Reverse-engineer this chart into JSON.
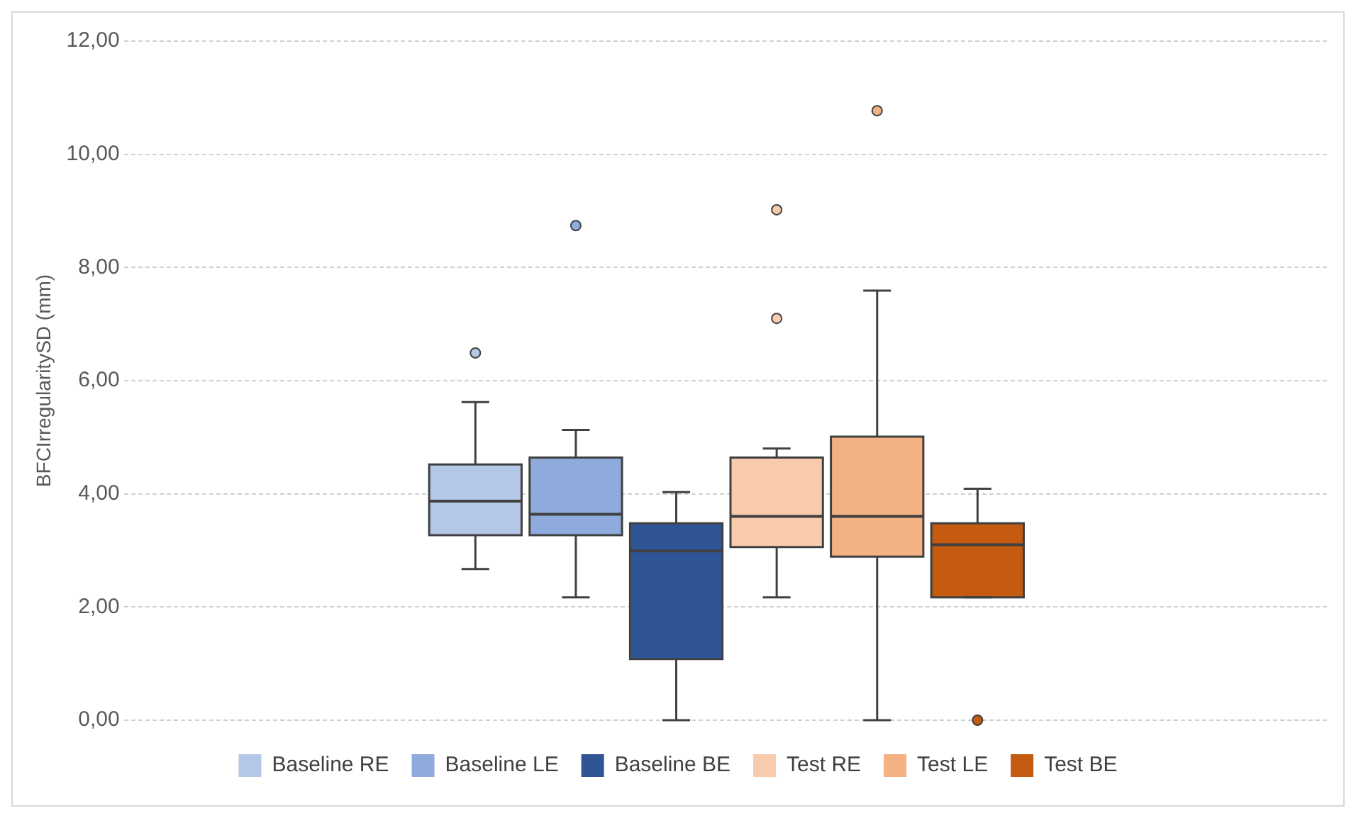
{
  "chart_data": {
    "type": "box",
    "ylabel": "BFCIrregularitySD (mm)",
    "categories": [
      null
    ],
    "series": [
      {
        "name": "Baseline RE",
        "color": "#b4c7e7",
        "boxes": [
          {
            "low": 2.67,
            "q1": 3.27,
            "median": 3.87,
            "q3": 4.52,
            "high": 5.62,
            "outliers": [
              6.49
            ]
          }
        ]
      },
      {
        "name": "Baseline LE",
        "color": "#8faadc",
        "boxes": [
          {
            "low": 2.17,
            "q1": 3.27,
            "median": 3.64,
            "q3": 4.64,
            "high": 5.13,
            "outliers": [
              8.74
            ]
          }
        ]
      },
      {
        "name": "Baseline BE",
        "color": "#2f5597",
        "boxes": [
          {
            "low": 0,
            "q1": 1.08,
            "median": 2.99,
            "q3": 3.48,
            "high": 4.03
          }
        ]
      },
      {
        "name": "Test RE",
        "color": "#f8cbad",
        "boxes": [
          {
            "low": 2.17,
            "q1": 3.06,
            "median": 3.6,
            "q3": 4.64,
            "high": 4.8,
            "outliers": [
              9.02,
              7.1
            ]
          }
        ]
      },
      {
        "name": "Test LE",
        "color": "#f4b183",
        "boxes": [
          {
            "low": 0,
            "q1": 2.89,
            "median": 3.6,
            "q3": 5.01,
            "high": 7.59,
            "outliers": [
              10.77
            ]
          }
        ]
      },
      {
        "name": "Test BE",
        "color": "#c55a11",
        "boxes": [
          {
            "low": 2.17,
            "q1": 2.17,
            "median": 3.1,
            "q3": 3.48,
            "high": 4.09,
            "outliers": [
              0
            ]
          }
        ]
      }
    ],
    "ylim": [
      0,
      12
    ],
    "yticks": [
      {
        "value": 0,
        "label": "0,00"
      },
      {
        "value": 2,
        "label": "2,00"
      },
      {
        "value": 4,
        "label": "4,00"
      },
      {
        "value": 6,
        "label": "6,00"
      },
      {
        "value": 8,
        "label": "8,00"
      },
      {
        "value": 10,
        "label": "10,00"
      },
      {
        "value": 12,
        "label": "12,00"
      }
    ],
    "grid": "y",
    "legend": "bottom"
  }
}
